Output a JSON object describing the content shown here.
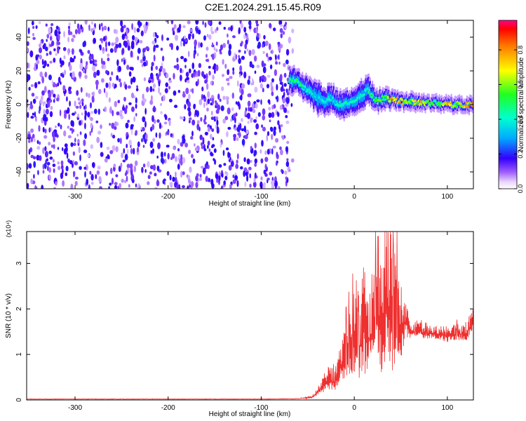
{
  "title": "C2E1.2024.291.15.45.R09",
  "colors": {
    "snr_line": "#ee3030",
    "axis": "#000000",
    "background": "#ffffff"
  },
  "chart_data": [
    {
      "type": "heatmap",
      "xlabel": "Height of straight line (km)",
      "ylabel": "Frequency (Hz)",
      "xlim": [
        -352,
        128
      ],
      "ylim": [
        -50,
        50
      ],
      "xticks": [
        -300,
        -200,
        -100,
        0,
        100
      ],
      "yticks": [
        -40,
        -20,
        0,
        20,
        40
      ],
      "colorbar": {
        "label": "Normalized spectral amplitude",
        "range": [
          0,
          0.97
        ],
        "ticks": [
          "0.0",
          "0.2",
          "0.4",
          "0.6",
          "0.8"
        ],
        "tick_values": [
          0.0,
          0.2,
          0.4,
          0.6,
          0.8
        ]
      },
      "noise_region_x": [
        -352,
        -66
      ],
      "noise_amplitude_approx": 0.12,
      "signal_track": {
        "x": [
          -70,
          -62,
          -55,
          -48,
          -40,
          -33,
          -25,
          -18,
          -10,
          -3,
          4,
          10,
          14,
          18,
          25,
          32,
          40,
          50,
          60,
          70,
          80,
          90,
          100,
          110,
          120,
          128
        ],
        "freq": [
          14,
          15,
          10,
          8,
          4,
          2,
          4,
          0,
          0,
          2,
          4,
          6,
          10,
          6,
          2,
          4,
          3,
          2,
          2,
          1,
          1,
          1,
          0,
          0,
          0,
          0
        ],
        "amplitude": [
          0.5,
          0.55,
          0.5,
          0.45,
          0.4,
          0.45,
          0.4,
          0.45,
          0.5,
          0.45,
          0.45,
          0.5,
          0.45,
          0.5,
          0.6,
          0.55,
          0.85,
          0.8,
          0.6,
          0.8,
          0.6,
          0.55,
          0.85,
          0.6,
          0.85,
          0.9
        ],
        "width_hz": [
          12,
          10,
          10,
          12,
          14,
          12,
          12,
          10,
          12,
          10,
          12,
          14,
          12,
          10,
          8,
          8,
          7,
          6,
          6,
          5,
          5,
          5,
          5,
          5,
          5,
          5
        ]
      }
    },
    {
      "type": "line",
      "xlabel": "Height of straight line (km)",
      "ylabel": "SNR (10 * v/v)",
      "y_multiplier": "(x10⁴)",
      "xlim": [
        -352,
        128
      ],
      "ylim": [
        0,
        3.7
      ],
      "xticks": [
        -300,
        -200,
        -100,
        0,
        100
      ],
      "yticks": [
        0,
        1,
        2,
        3
      ],
      "series": [
        {
          "x": [
            -352,
            -100,
            -60,
            -45,
            -35,
            -28,
            -20,
            -15,
            -10,
            -5,
            0,
            5,
            10,
            15,
            20,
            25,
            30,
            35,
            40,
            45,
            50,
            55,
            60,
            65,
            70,
            75,
            80,
            90,
            100,
            110,
            120,
            128
          ],
          "y": [
            0.02,
            0.02,
            0.03,
            0.06,
            0.25,
            0.45,
            0.35,
            0.7,
            0.9,
            1.1,
            1.3,
            1.0,
            1.5,
            1.3,
            1.5,
            1.9,
            1.6,
            2.2,
            1.7,
            1.8,
            1.5,
            1.7,
            1.5,
            1.45,
            1.55,
            1.45,
            1.45,
            1.45,
            1.4,
            1.45,
            1.45,
            1.7
          ],
          "spread": [
            0.0,
            0.0,
            0.0,
            0.05,
            0.2,
            0.4,
            0.3,
            0.6,
            0.8,
            1.1,
            1.3,
            1.0,
            1.7,
            1.3,
            1.6,
            2.1,
            1.9,
            2.5,
            2.1,
            1.8,
            1.2,
            0.7,
            0.3,
            0.2,
            0.2,
            0.2,
            0.2,
            0.2,
            0.25,
            0.25,
            0.3,
            0.4
          ]
        }
      ]
    }
  ]
}
